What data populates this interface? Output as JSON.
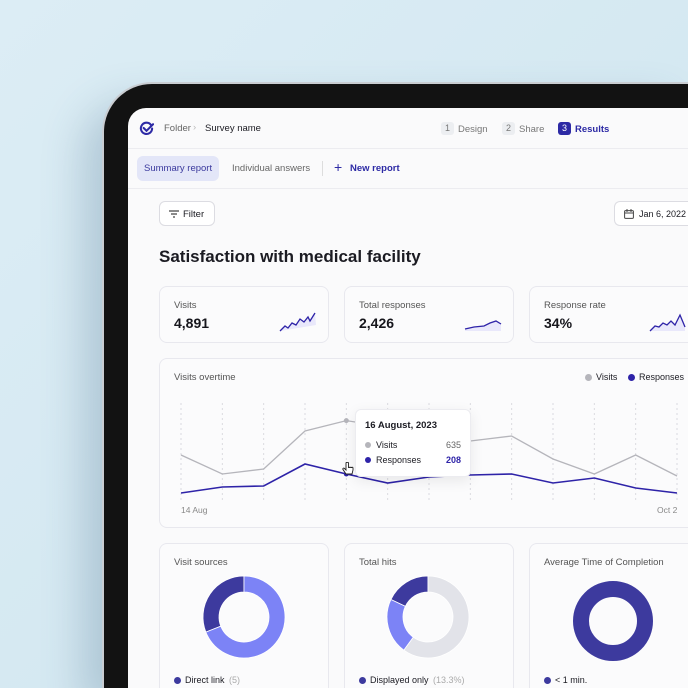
{
  "header": {
    "breadcrumb": [
      "Folder",
      "Survey name"
    ],
    "steps": [
      {
        "num": "1",
        "label": "Design"
      },
      {
        "num": "2",
        "label": "Share"
      },
      {
        "num": "3",
        "label": "Results",
        "active": true
      }
    ]
  },
  "tabs": [
    {
      "label": "Summary report",
      "active": true
    },
    {
      "label": "Individual answers"
    }
  ],
  "new_report": "New report",
  "filter": "Filter",
  "date": "Jan 6, 2022",
  "title": "Satisfaction with medical facility",
  "stats": [
    {
      "label": "Visits",
      "value": "4,891"
    },
    {
      "label": "Total responses",
      "value": "2,426"
    },
    {
      "label": "Response rate",
      "value": "34%"
    }
  ],
  "colors": {
    "accent": "#2d2aa5",
    "visits": "#b5b5bb",
    "responses": "#2e23a8",
    "donut_dark": "#3d3a9e",
    "donut_light": "#7c83f6",
    "donut_gray": "#e2e3e9"
  },
  "chart_data": [
    {
      "type": "line",
      "title": "Visits overtime",
      "x_labels": [
        "14 Aug",
        "Oct 2"
      ],
      "legend": "top-right",
      "grid": "vertical-dotted",
      "series": [
        {
          "name": "Visits",
          "values": [
            360,
            208,
            248,
            552,
            635,
            584,
            480,
            472,
            512,
            328,
            208,
            360,
            192
          ]
        },
        {
          "name": "Responses",
          "values": [
            56,
            104,
            112,
            288,
            208,
            136,
            184,
            200,
            208,
            136,
            176,
            96,
            56
          ]
        }
      ],
      "ylim": [
        0,
        800
      ],
      "tooltip": {
        "date": "16 August, 2023",
        "rows": [
          {
            "name": "Visits",
            "value": "635"
          },
          {
            "name": "Responses",
            "value": "208"
          }
        ]
      }
    },
    {
      "type": "pie",
      "title": "Visit sources",
      "values": [
        31,
        69
      ],
      "legend": [
        {
          "label": "Direct link",
          "count": "(5)"
        }
      ]
    },
    {
      "type": "pie",
      "title": "Total hits",
      "values": [
        18,
        22,
        60
      ],
      "legend": [
        {
          "label": "Displayed only",
          "count": "(13.3%)"
        }
      ]
    },
    {
      "type": "pie",
      "title": "Average Time of Completion",
      "values": [
        100
      ],
      "legend": [
        {
          "label": "< 1 min.",
          "count": ""
        }
      ]
    }
  ]
}
